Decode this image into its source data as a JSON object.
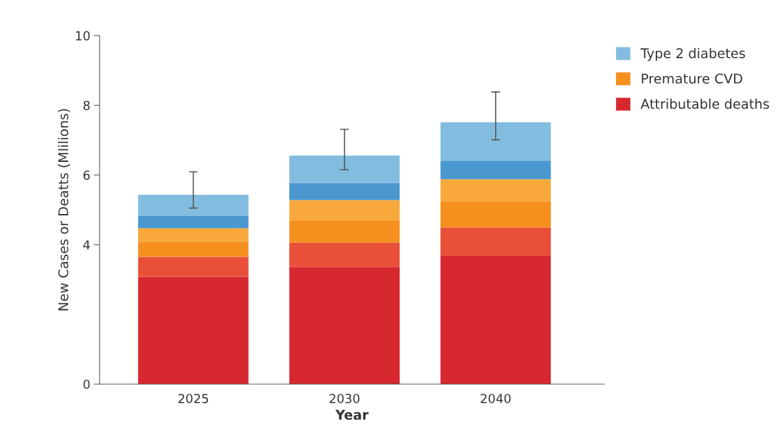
{
  "chart_data": {
    "type": "bar",
    "stacked": true,
    "xlabel": "Year",
    "ylabel": "New Cases or Deatts (Mlilions)",
    "categories": [
      "2025",
      "2030",
      "2040"
    ],
    "ylim": [
      0,
      10
    ],
    "yticks": [
      0,
      4,
      6,
      8,
      10
    ],
    "series": [
      {
        "name": "Attributable deaths",
        "color": "#d7282f",
        "values": [
          3.08,
          3.36,
          3.68
        ]
      },
      {
        "color": "#e8503a",
        "values": [
          0.57,
          0.7,
          0.81
        ]
      },
      {
        "name": "Premature CVD",
        "color": "#f5901f",
        "values": [
          0.44,
          0.64,
          0.76
        ]
      },
      {
        "color": "#f9a93b",
        "values": [
          0.38,
          0.58,
          0.63
        ]
      },
      {
        "color": "#4a98cf",
        "values": [
          0.35,
          0.49,
          0.53
        ]
      },
      {
        "name": "Type 2 diabetes",
        "color": "#82bde0",
        "values": [
          0.61,
          0.79,
          1.1
        ],
        "errors": [
          [
            5.05,
            6.09
          ],
          [
            6.15,
            7.31
          ],
          [
            7.01,
            8.38
          ]
        ]
      }
    ],
    "legend": "top right",
    "grid": false
  }
}
